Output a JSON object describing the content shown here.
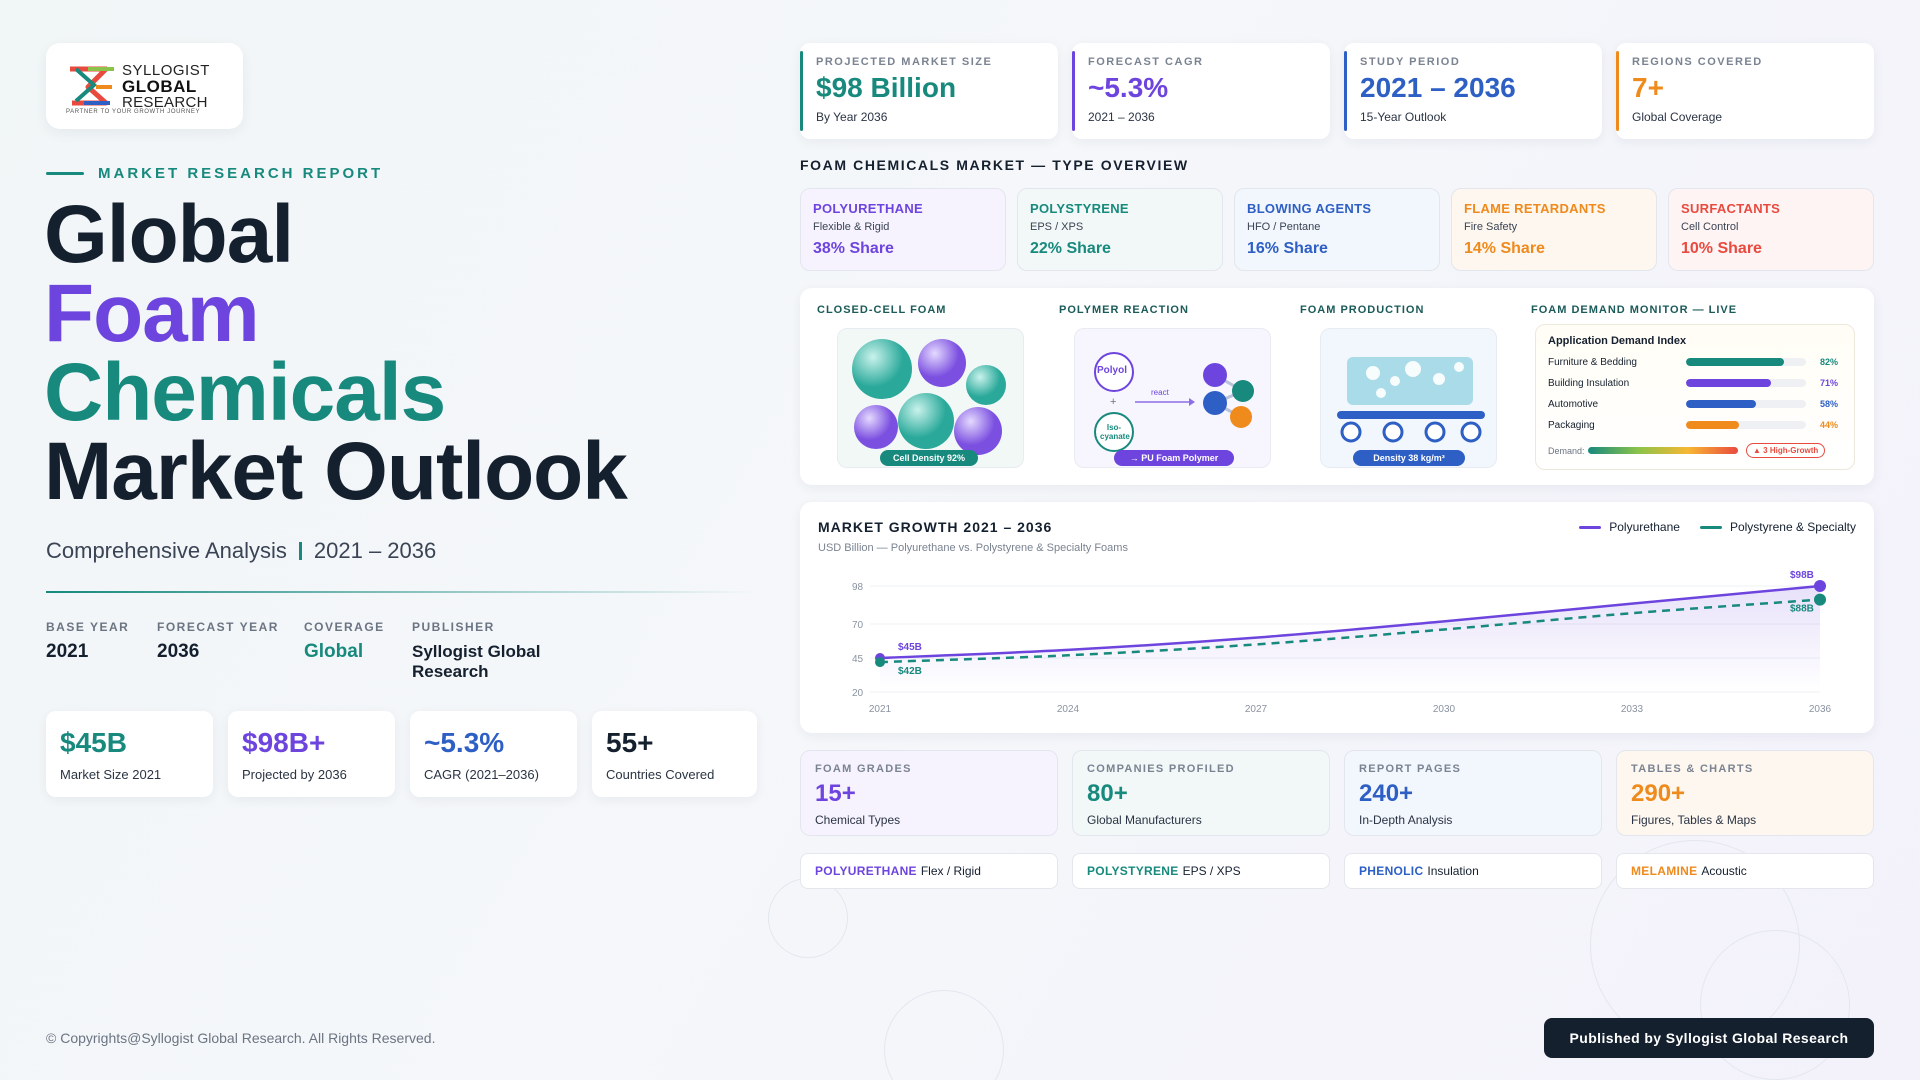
{
  "brand": {
    "logo_line1": "SYLLOGIST",
    "logo_line2": "GLOBAL",
    "logo_line3": "RESEARCH",
    "tagline": "PARTNER TO YOUR GROWTH JOURNEY"
  },
  "report": {
    "eyebrow": "MARKET RESEARCH REPORT",
    "title_line1": "Global",
    "title_line2": "Foam",
    "title_line3": "Chemicals",
    "title_line4": "Market Outlook",
    "subtitle_left": "Comprehensive Analysis",
    "subtitle_right": "2021 – 2036"
  },
  "meta": [
    {
      "key": "BASE YEAR",
      "value": "2021"
    },
    {
      "key": "FORECAST YEAR",
      "value": "2036"
    },
    {
      "key": "COVERAGE",
      "value": "Global"
    },
    {
      "key": "PUBLISHER",
      "value": "Syllogist Global Research"
    }
  ],
  "left_kpis": [
    {
      "value": "$45B",
      "label": "Market Size 2021",
      "color": "#17897d"
    },
    {
      "value": "$98B+",
      "label": "Projected by 2036",
      "color": "#6d45de"
    },
    {
      "value": "~5.3%",
      "label": "CAGR (2021–2036)",
      "color": "#2d5fc4"
    },
    {
      "value": "55+",
      "label": "Countries Covered",
      "color": "#15202f"
    }
  ],
  "top_cards": [
    {
      "key": "PROJECTED MARKET SIZE",
      "value": "$98 Billion",
      "label": "By Year 2036",
      "color": "#17897d"
    },
    {
      "key": "FORECAST CAGR",
      "value": "~5.3%",
      "label": "2021 – 2036",
      "color": "#6d45de"
    },
    {
      "key": "STUDY PERIOD",
      "value": "2021 – 2036",
      "label": "15-Year Outlook",
      "color": "#2d5fc4"
    },
    {
      "key": "REGIONS COVERED",
      "value": "7+",
      "label": "Global Coverage",
      "color": "#ef8a1c"
    }
  ],
  "type_overview": {
    "title": "FOAM CHEMICALS MARKET — TYPE OVERVIEW",
    "items": [
      {
        "name": "POLYURETHANE",
        "desc": "Flexible & Rigid",
        "share": "38% Share",
        "color": "#6d45de",
        "bg": "#f6f3fe"
      },
      {
        "name": "POLYSTYRENE",
        "desc": "EPS / XPS",
        "share": "22% Share",
        "color": "#17897d",
        "bg": "#f1f8f7"
      },
      {
        "name": "BLOWING AGENTS",
        "desc": "HFO / Pentane",
        "share": "16% Share",
        "color": "#2d5fc4",
        "bg": "#f2f6fd"
      },
      {
        "name": "FLAME RETARDANTS",
        "desc": "Fire Safety",
        "share": "14% Share",
        "color": "#ef8a1c",
        "bg": "#fef7ef"
      },
      {
        "name": "SURFACTANTS",
        "desc": "Cell Control",
        "share": "10% Share",
        "color": "#e94a3f",
        "bg": "#fef4f3"
      }
    ]
  },
  "illustrations": {
    "closed_cell": {
      "heading": "CLOSED-CELL FOAM",
      "pill": "Cell Density 92%"
    },
    "reaction": {
      "heading": "POLYMER REACTION",
      "polyol": "Polyol",
      "isocyanate": "Iso-cyanate",
      "plus": "+",
      "react": "react",
      "pill": "→ PU Foam Polymer"
    },
    "production": {
      "heading": "FOAM PRODUCTION",
      "pill": "Density 38 kg/m³"
    }
  },
  "demand_monitor": {
    "heading": "FOAM DEMAND MONITOR — LIVE",
    "title": "Application Demand Index",
    "rows": [
      {
        "label": "Furniture & Bedding",
        "value": 82,
        "pct": "82%",
        "color": "#17897d"
      },
      {
        "label": "Building Insulation",
        "value": 71,
        "pct": "71%",
        "color": "#6d45de"
      },
      {
        "label": "Automotive",
        "value": 58,
        "pct": "58%",
        "color": "#2d5fc4"
      },
      {
        "label": "Packaging",
        "value": 44,
        "pct": "44%",
        "color": "#ef8a1c"
      }
    ],
    "demand_label": "Demand:",
    "badge": "▲ 3 High-Growth"
  },
  "chart_data": {
    "type": "line",
    "title": "MARKET GROWTH 2021 – 2036",
    "subtitle": "USD Billion — Polyurethane vs. Polystyrene & Specialty Foams",
    "x": [
      2021,
      2024,
      2027,
      2030,
      2033,
      2036
    ],
    "x_ticks": [
      "2021",
      "2024",
      "2027",
      "2030",
      "2033",
      "2036"
    ],
    "y_ticks": [
      20,
      45,
      70,
      98
    ],
    "ylim": [
      20,
      98
    ],
    "series": [
      {
        "name": "Polyurethane",
        "values": [
          45,
          51,
          60,
          72,
          85,
          98
        ],
        "color": "#6d45de",
        "dash": false,
        "start_label": "$45B",
        "end_label": "$98B"
      },
      {
        "name": "Polystyrene & Specialty",
        "values": [
          42,
          47,
          55,
          66,
          78,
          88
        ],
        "color": "#17897d",
        "dash": true,
        "start_label": "$42B",
        "end_label": "$88B"
      }
    ],
    "legend": "top-right",
    "grid": true
  },
  "stats": [
    {
      "key": "FOAM GRADES",
      "value": "15+",
      "label": "Chemical Types",
      "color": "#6d45de",
      "bg": "#f6f3fe"
    },
    {
      "key": "COMPANIES PROFILED",
      "value": "80+",
      "label": "Global Manufacturers",
      "color": "#17897d",
      "bg": "#f1f8f7"
    },
    {
      "key": "REPORT PAGES",
      "value": "240+",
      "label": "In-Depth Analysis",
      "color": "#2d5fc4",
      "bg": "#f2f6fd"
    },
    {
      "key": "TABLES & CHARTS",
      "value": "290+",
      "label": "Figures, Tables & Maps",
      "color": "#ef8a1c",
      "bg": "#fef7ef"
    }
  ],
  "tags": [
    {
      "name": "POLYURETHANE",
      "desc": "Flex / Rigid",
      "color": "#6d45de"
    },
    {
      "name": "POLYSTYRENE",
      "desc": "EPS / XPS",
      "color": "#17897d"
    },
    {
      "name": "PHENOLIC",
      "desc": "Insulation",
      "color": "#2d5fc4"
    },
    {
      "name": "MELAMINE",
      "desc": "Acoustic",
      "color": "#ef8a1c"
    }
  ],
  "footer": {
    "copyright": "© Copyrights@Syllogist Global Research. All Rights Reserved.",
    "publisher_button": "Published by Syllogist Global Research"
  }
}
